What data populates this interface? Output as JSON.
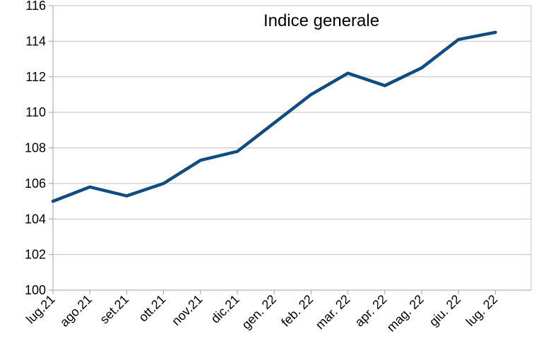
{
  "chart_data": {
    "type": "line",
    "title": "Indice generale",
    "xlabel": "",
    "ylabel": "",
    "categories": [
      "lug.21",
      "ago.21",
      "set.21",
      "ott.21",
      "nov.21",
      "dic.21",
      "gen. 22",
      "feb. 22",
      "mar. 22",
      "apr. 22",
      "mag. 22",
      "giu. 22",
      "lug. 22"
    ],
    "series": [
      {
        "values": [
          105.0,
          105.8,
          105.3,
          106.0,
          107.3,
          107.8,
          109.4,
          111.0,
          112.2,
          111.5,
          112.5,
          114.1,
          114.5
        ]
      }
    ],
    "ylim": [
      100,
      116
    ],
    "yticks": [
      "100",
      "102",
      "104",
      "106",
      "108",
      "110",
      "112",
      "114",
      "116"
    ],
    "grid": true,
    "line_color": "#0f4c81",
    "grid_color": "#c0c0c0",
    "axis_color": "#a0a0a0"
  }
}
